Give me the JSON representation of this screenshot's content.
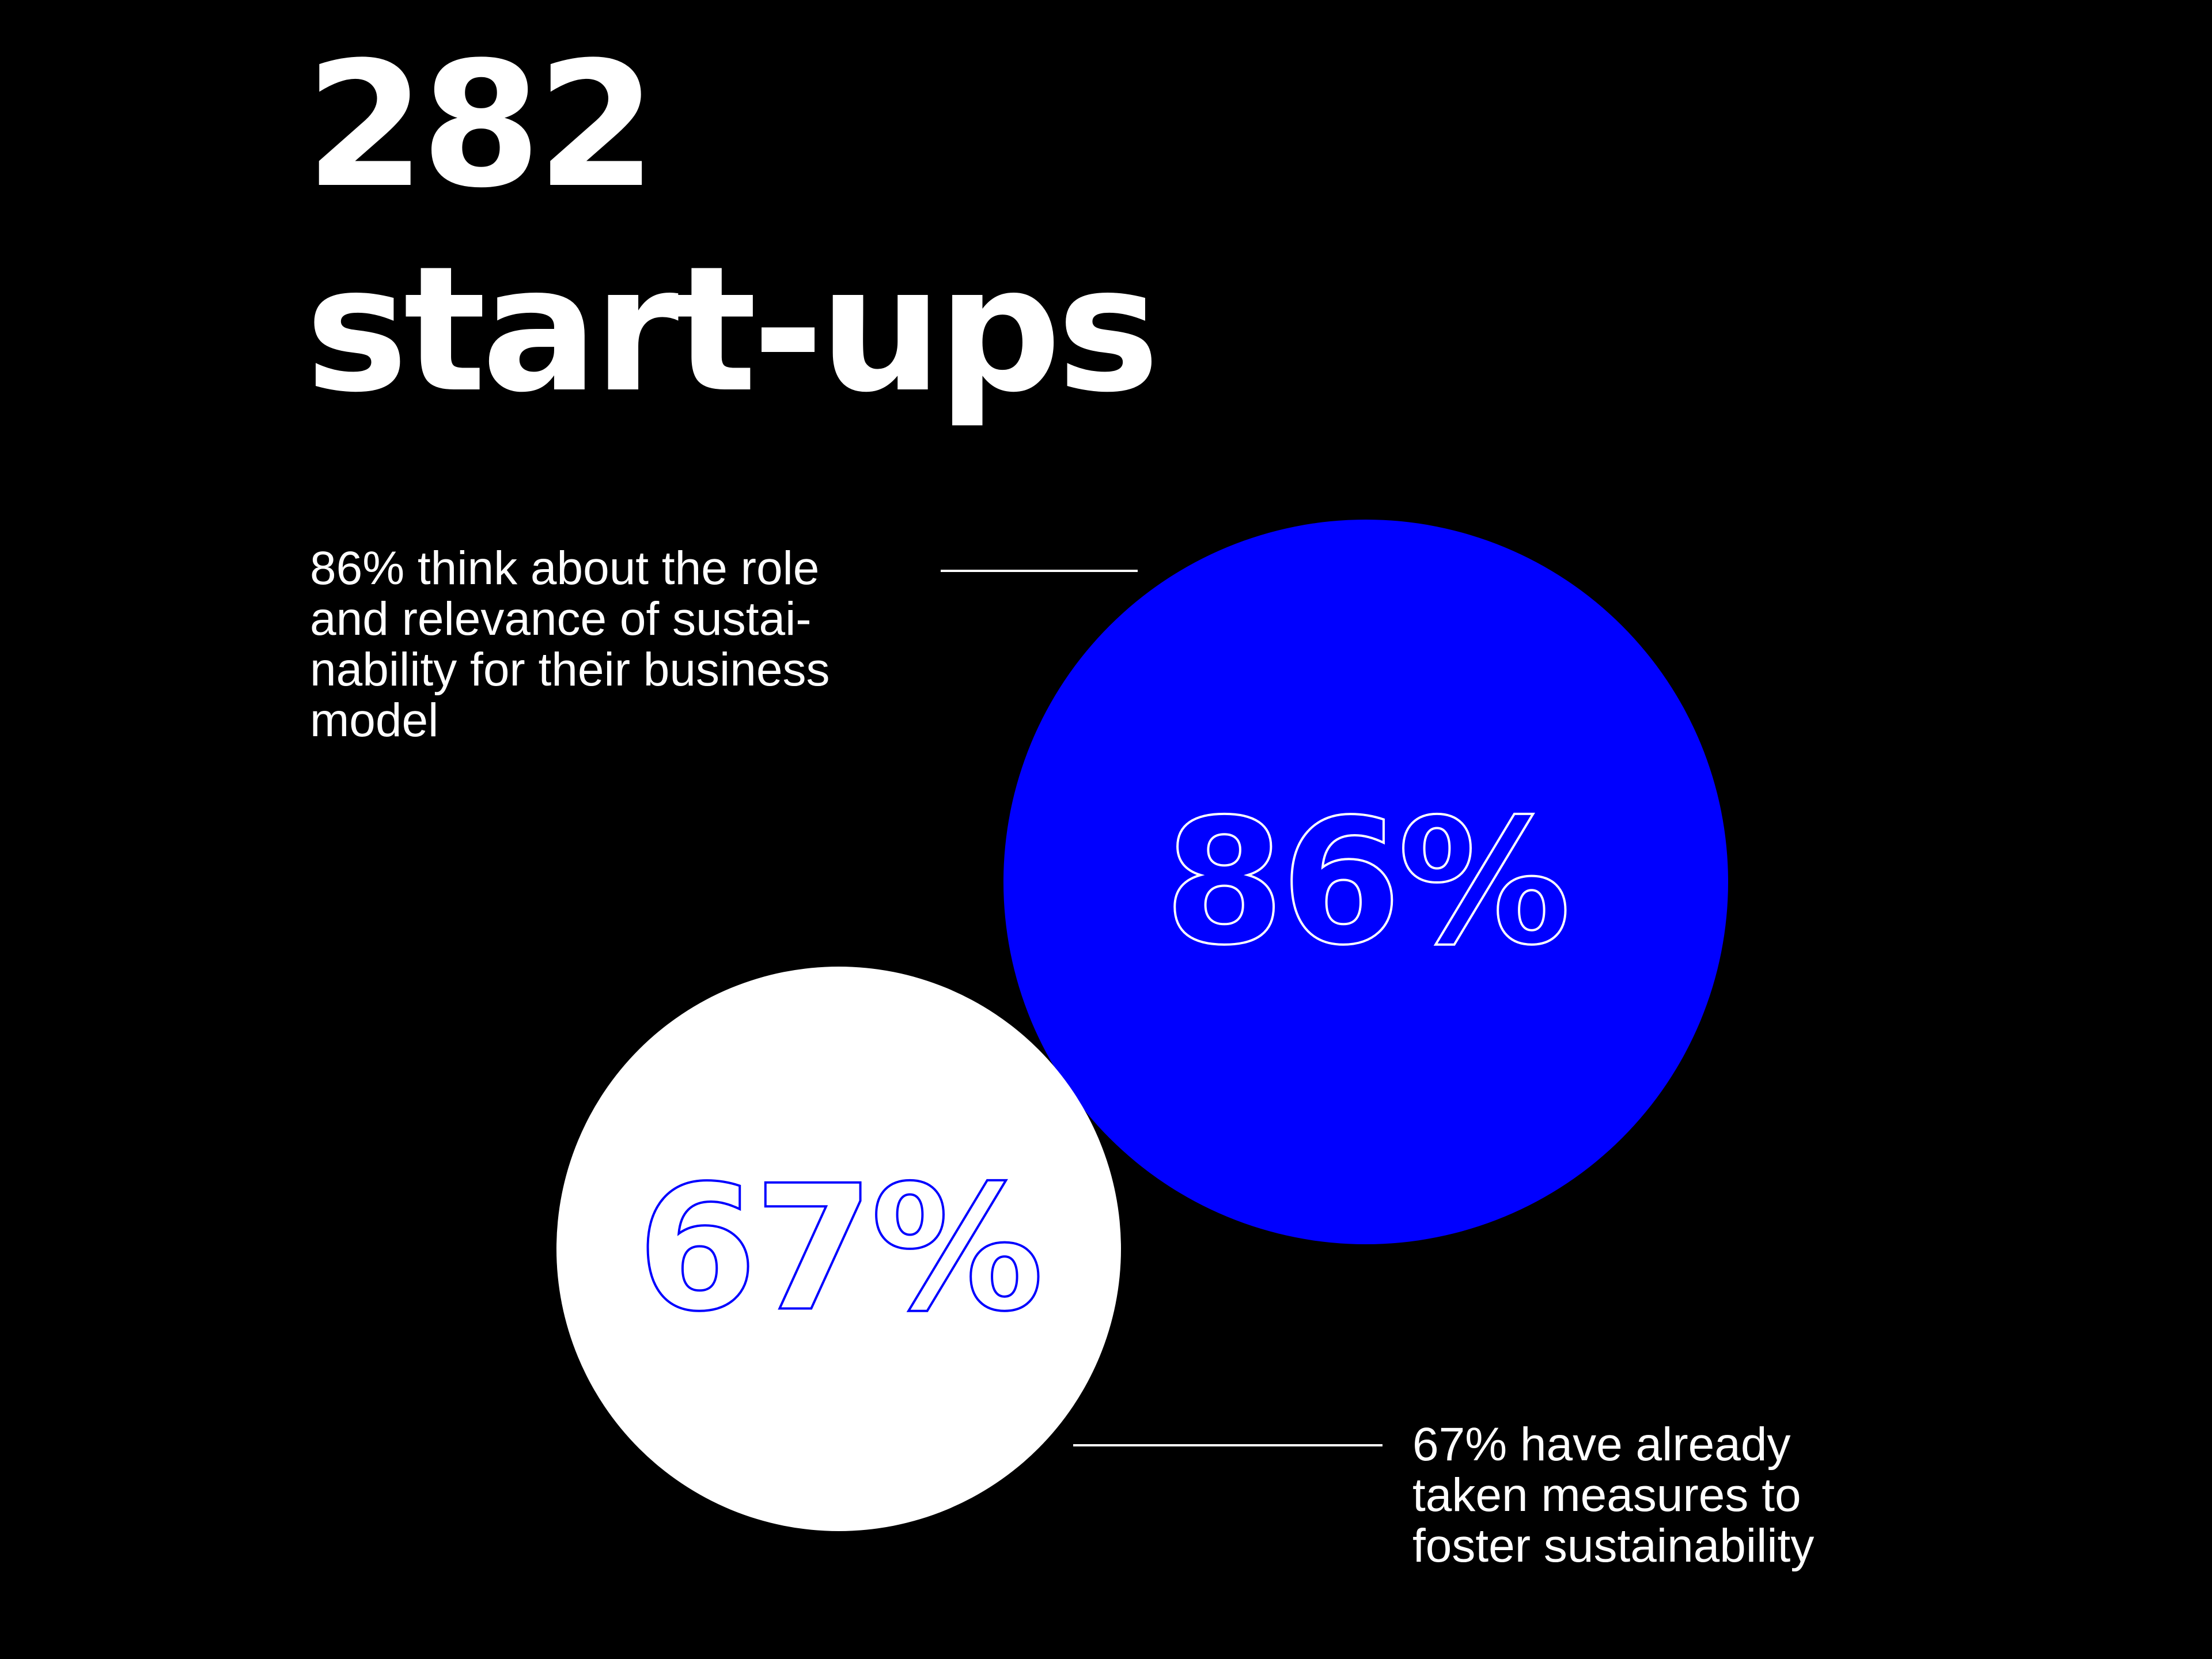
{
  "headline": {
    "line1": "282",
    "line2": "start-ups"
  },
  "stats": [
    {
      "value": "86%",
      "caption_lines": [
        "86% think about the role",
        "and relevance of sustai-",
        "nability for their business",
        "model"
      ],
      "circle_color": "#0000FF",
      "number_outline_color": "#FFFFFF"
    },
    {
      "value": "67%",
      "caption_lines": [
        "67% have already",
        "taken measures to",
        "foster sustainability"
      ],
      "circle_color": "#FFFFFF",
      "number_outline_color": "#0000FF"
    }
  ],
  "colors": {
    "background": "#000000",
    "text": "#FFFFFF",
    "accent_blue": "#0000FF"
  }
}
